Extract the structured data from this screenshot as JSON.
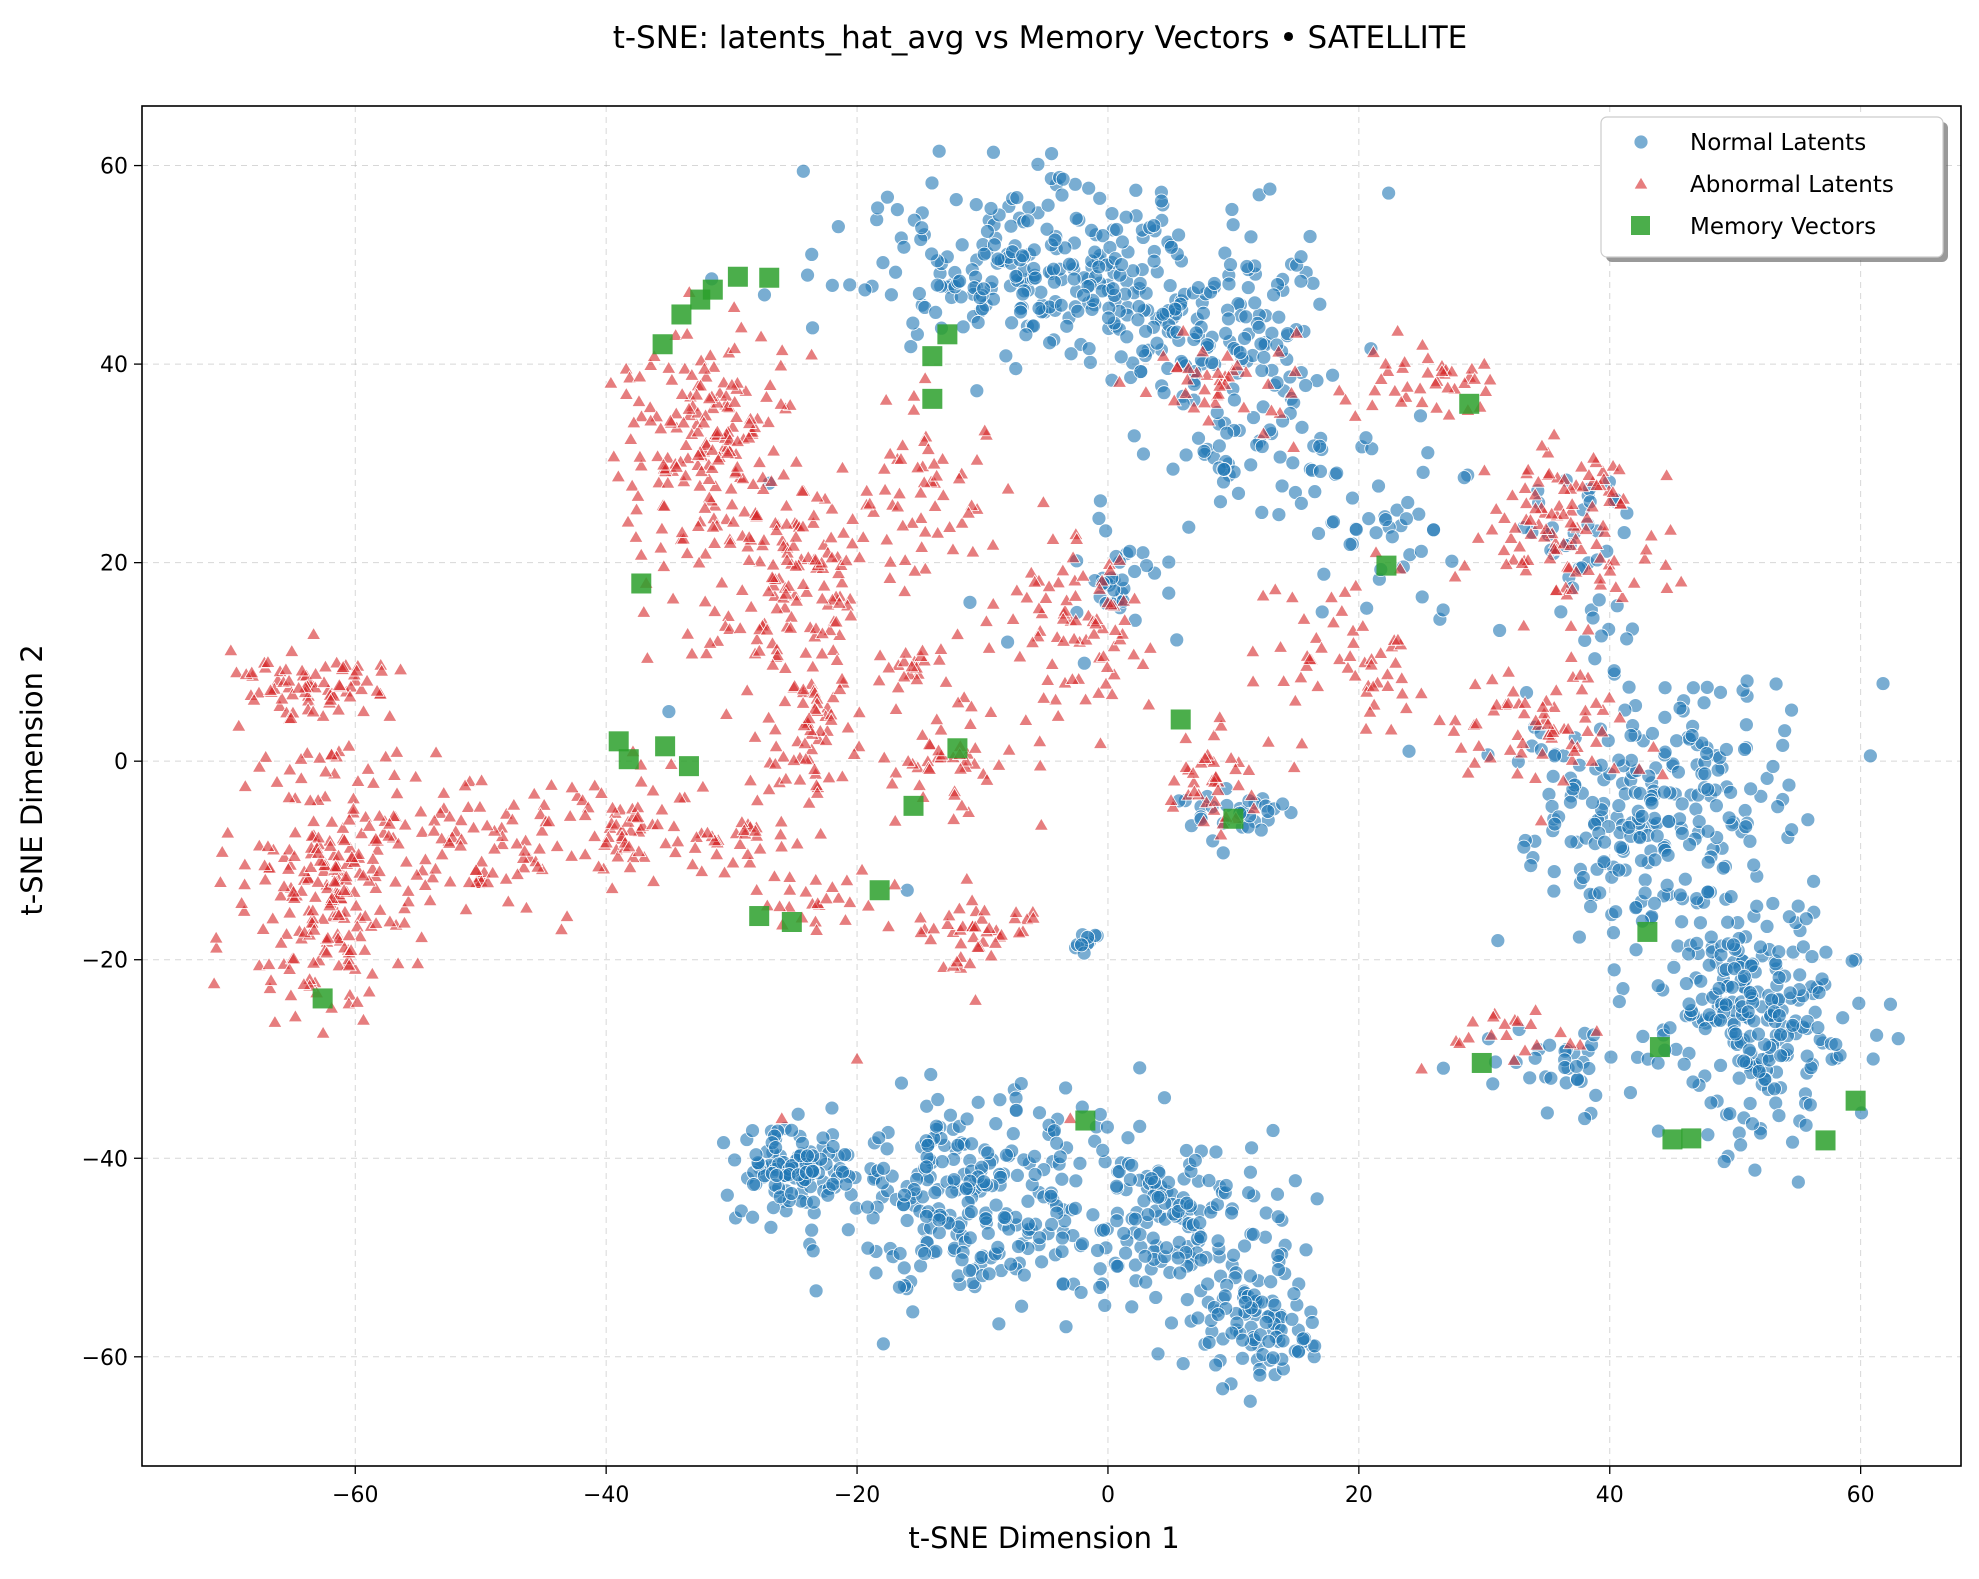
{
  "chart_data": {
    "type": "scatter",
    "title": "t-SNE: latents_hat_avg vs Memory Vectors • SATELLITE",
    "xlabel": "t-SNE Dimension 1",
    "ylabel": "t-SNE Dimension 2",
    "xlim": [
      -77,
      68
    ],
    "ylim": [
      -71,
      66
    ],
    "xticks": [
      -60,
      -40,
      -20,
      0,
      20,
      40,
      60
    ],
    "yticks": [
      -60,
      -40,
      -20,
      0,
      20,
      40,
      60
    ],
    "grid": true,
    "legend_position": "top-right",
    "series": [
      {
        "name": "Normal Latents",
        "marker": "circle",
        "color": "#1f77b4",
        "clusters": [
          {
            "cx": -3,
            "cy": 49,
            "sx": 11,
            "sy": 6,
            "n": 300
          },
          {
            "cx": 10,
            "cy": 42,
            "sx": 7,
            "sy": 6,
            "n": 110
          },
          {
            "cx": 12,
            "cy": 30,
            "sx": 5,
            "sy": 4,
            "n": 50
          },
          {
            "cx": 22,
            "cy": 24,
            "sx": 4,
            "sy": 5,
            "n": 40
          },
          {
            "cx": 38,
            "cy": 20,
            "sx": 3,
            "sy": 8,
            "n": 40
          },
          {
            "cx": 43,
            "cy": -5,
            "sx": 8,
            "sy": 9,
            "n": 260
          },
          {
            "cx": 52,
            "cy": -26,
            "sx": 5,
            "sy": 7,
            "n": 240
          },
          {
            "cx": 37,
            "cy": -30,
            "sx": 5,
            "sy": 3,
            "n": 40
          },
          {
            "cx": -25,
            "cy": -41,
            "sx": 3,
            "sy": 3,
            "n": 110
          },
          {
            "cx": -10,
            "cy": -44,
            "sx": 8,
            "sy": 7,
            "n": 280
          },
          {
            "cx": 6,
            "cy": -47,
            "sx": 6,
            "sy": 6,
            "n": 150
          },
          {
            "cx": 12,
            "cy": -57,
            "sx": 3,
            "sy": 4,
            "n": 90
          },
          {
            "cx": 11,
            "cy": -5,
            "sx": 3,
            "sy": 2,
            "n": 30
          },
          {
            "cx": -2,
            "cy": -18,
            "sx": 1.2,
            "sy": 1,
            "n": 10
          },
          {
            "cx": 1,
            "cy": 18,
            "sx": 3,
            "sy": 4,
            "n": 35
          }
        ],
        "extra_points": [
          [
            -27,
            28
          ],
          [
            -35,
            5
          ],
          [
            -11,
            16
          ],
          [
            -16,
            -13
          ],
          [
            24,
            1
          ],
          [
            38,
            -36
          ],
          [
            61,
            -30
          ],
          [
            -8,
            12
          ],
          [
            6,
            36
          ]
        ]
      },
      {
        "name": "Abnormal Latents",
        "marker": "triangle",
        "color": "#d62728",
        "clusters": [
          {
            "cx": -65,
            "cy": 8,
            "sx": 3,
            "sy": 3,
            "n": 45
          },
          {
            "cx": -60,
            "cy": 8,
            "sx": 3,
            "sy": 2,
            "n": 30
          },
          {
            "cx": -62,
            "cy": -12,
            "sx": 5,
            "sy": 9,
            "n": 230
          },
          {
            "cx": -50,
            "cy": -9,
            "sx": 6,
            "sy": 5,
            "n": 90
          },
          {
            "cx": -38,
            "cy": -6,
            "sx": 3,
            "sy": 4,
            "n": 60
          },
          {
            "cx": -29,
            "cy": -8,
            "sx": 3,
            "sy": 2,
            "n": 30
          },
          {
            "cx": -32,
            "cy": 32,
            "sx": 4,
            "sy": 8,
            "n": 180
          },
          {
            "cx": -25,
            "cy": 18,
            "sx": 5,
            "sy": 7,
            "n": 150
          },
          {
            "cx": -23,
            "cy": 2,
            "sx": 3,
            "sy": 5,
            "n": 60
          },
          {
            "cx": -14,
            "cy": 28,
            "sx": 3,
            "sy": 7,
            "n": 50
          },
          {
            "cx": -13,
            "cy": 0,
            "sx": 4,
            "sy": 4,
            "n": 50
          },
          {
            "cx": -2,
            "cy": 14,
            "sx": 4,
            "sy": 6,
            "n": 80
          },
          {
            "cx": 8,
            "cy": -2,
            "sx": 3,
            "sy": 3,
            "n": 40
          },
          {
            "cx": 10,
            "cy": 38,
            "sx": 5,
            "sy": 3,
            "n": 40
          },
          {
            "cx": 20,
            "cy": 10,
            "sx": 6,
            "sy": 6,
            "n": 60
          },
          {
            "cx": 26,
            "cy": 38,
            "sx": 4,
            "sy": 3,
            "n": 40
          },
          {
            "cx": 37,
            "cy": 24,
            "sx": 5,
            "sy": 5,
            "n": 110
          },
          {
            "cx": 34,
            "cy": 4,
            "sx": 5,
            "sy": 5,
            "n": 70
          },
          {
            "cx": -10,
            "cy": -17,
            "sx": 3,
            "sy": 3,
            "n": 45
          },
          {
            "cx": -23,
            "cy": -14,
            "sx": 3,
            "sy": 2,
            "n": 25
          },
          {
            "cx": -15,
            "cy": 10,
            "sx": 2,
            "sy": 2,
            "n": 20
          },
          {
            "cx": 33,
            "cy": -27,
            "sx": 4,
            "sy": 2,
            "n": 20
          }
        ],
        "extra_points": [
          [
            -28,
            -13
          ],
          [
            -20,
            -30
          ],
          [
            -3,
            -36
          ],
          [
            25,
            -31
          ],
          [
            -26,
            -36
          ],
          [
            -37,
            15
          ],
          [
            30,
            40
          ]
        ]
      },
      {
        "name": "Memory Vectors",
        "marker": "square",
        "color": "#2ca02c",
        "points": [
          [
            -29.5,
            48.8
          ],
          [
            -27,
            48.7
          ],
          [
            -31.5,
            47.5
          ],
          [
            -32.5,
            46.5
          ],
          [
            -34,
            45
          ],
          [
            -35.5,
            42
          ],
          [
            -12.8,
            43
          ],
          [
            -14,
            40.8
          ],
          [
            -14,
            36.5
          ],
          [
            28.8,
            36
          ],
          [
            -37.2,
            17.9
          ],
          [
            22.2,
            19.7
          ],
          [
            -39,
            2
          ],
          [
            -38.2,
            0.2
          ],
          [
            -35.3,
            1.5
          ],
          [
            -33.4,
            -0.5
          ],
          [
            -12,
            1.3
          ],
          [
            5.8,
            4.2
          ],
          [
            -15.5,
            -4.5
          ],
          [
            10,
            -5.8
          ],
          [
            -18.2,
            -13
          ],
          [
            -27.8,
            -15.6
          ],
          [
            -25.2,
            -16.2
          ],
          [
            -62.6,
            -23.9
          ],
          [
            -1.8,
            -36.2
          ],
          [
            43,
            -17.2
          ],
          [
            29.8,
            -30.4
          ],
          [
            44,
            -28.8
          ],
          [
            45,
            -38.1
          ],
          [
            46.5,
            -38
          ],
          [
            57.2,
            -38.2
          ],
          [
            59.6,
            -34.2
          ]
        ]
      }
    ]
  }
}
